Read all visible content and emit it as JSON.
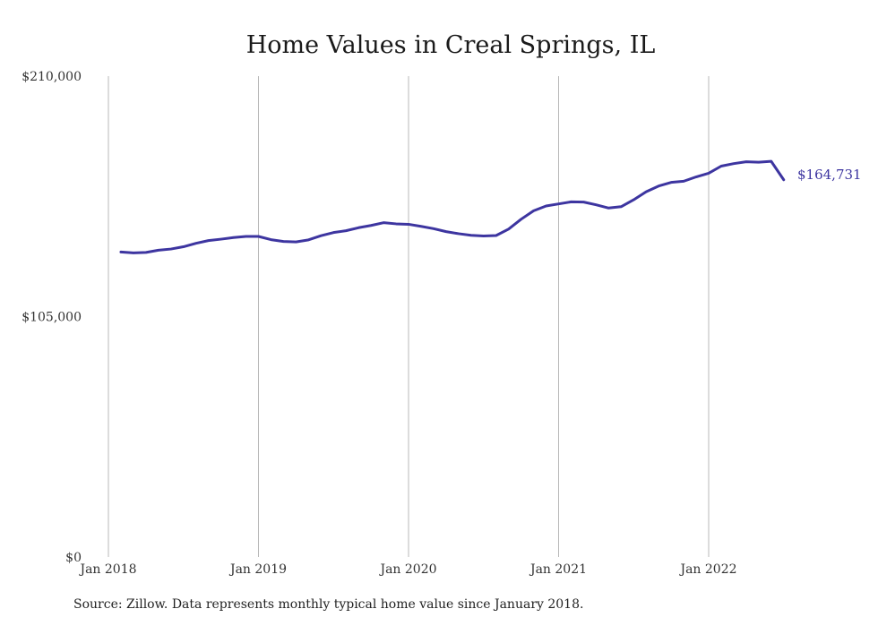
{
  "chart_data": {
    "type": "line",
    "title": "Home Values in Creal Springs, IL",
    "xlabel": "",
    "ylabel": "",
    "ylim": [
      0,
      210000
    ],
    "y_tick_labels": [
      "$210,000",
      "$105,000",
      "$0"
    ],
    "y_tick_values": [
      210000,
      105000,
      0
    ],
    "x_tick_labels": [
      "Jan 2018",
      "Jan 2019",
      "Jan 2020",
      "Jan 2021",
      "Jan 2022"
    ],
    "x_tick_dates": [
      "2018-01",
      "2019-01",
      "2020-01",
      "2021-01",
      "2022-01"
    ],
    "grid": "vertical",
    "line_color": "#3d35a0",
    "end_label": "$164,731",
    "series": [
      {
        "x": [
          "2018-02",
          "2018-03",
          "2018-04",
          "2018-05",
          "2018-06",
          "2018-07",
          "2018-08",
          "2018-09",
          "2018-10",
          "2018-11",
          "2018-12",
          "2019-01",
          "2019-02",
          "2019-03",
          "2019-04",
          "2019-05",
          "2019-06",
          "2019-07",
          "2019-08",
          "2019-09",
          "2019-10",
          "2019-11",
          "2019-12",
          "2020-01",
          "2020-02",
          "2020-03",
          "2020-04",
          "2020-05",
          "2020-06",
          "2020-07",
          "2020-08",
          "2020-09",
          "2020-10",
          "2020-11",
          "2020-12",
          "2021-01",
          "2021-02",
          "2021-03",
          "2021-04",
          "2021-05",
          "2021-06",
          "2021-07",
          "2021-08",
          "2021-09",
          "2021-10",
          "2021-11",
          "2021-12",
          "2022-01",
          "2022-02",
          "2022-03",
          "2022-04",
          "2022-05",
          "2022-06",
          "2022-07"
        ],
        "values": [
          133200,
          132800,
          133000,
          134000,
          134500,
          135500,
          137000,
          138200,
          138800,
          139500,
          140000,
          140000,
          138600,
          137800,
          137600,
          138500,
          140300,
          141700,
          142500,
          143800,
          144800,
          146000,
          145500,
          145300,
          144400,
          143400,
          142100,
          141200,
          140500,
          140200,
          140400,
          143200,
          147500,
          151200,
          153300,
          154200,
          155100,
          155000,
          153800,
          152400,
          153000,
          156000,
          159500,
          162000,
          163600,
          164100,
          166000,
          167600,
          170700,
          171800,
          172600,
          172400,
          172800,
          164731
        ]
      }
    ]
  }
}
